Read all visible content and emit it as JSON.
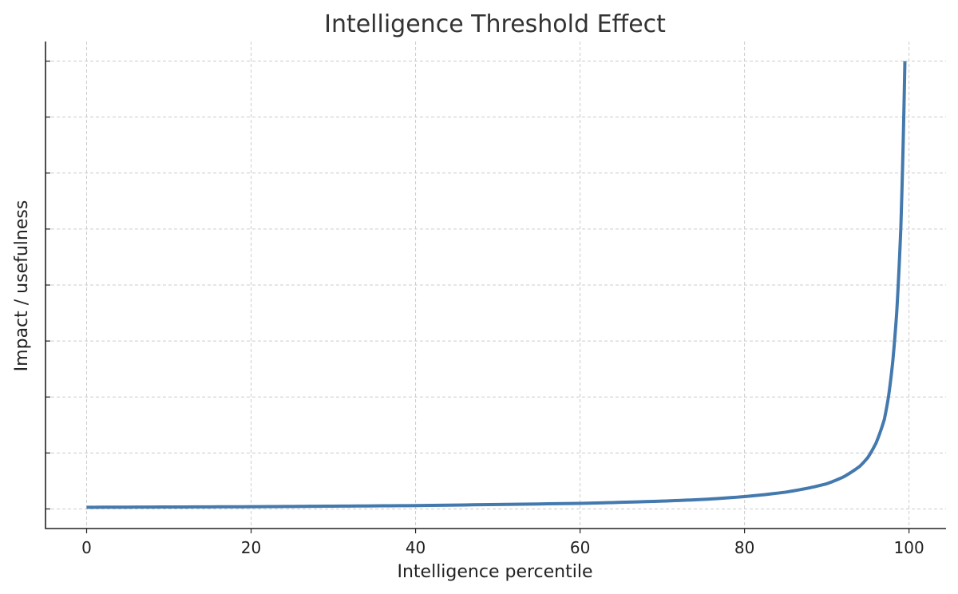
{
  "chart_data": {
    "type": "line",
    "title": "Intelligence Threshold Effect",
    "xlabel": "Intelligence percentile",
    "ylabel": "Impact / usefulness",
    "xlim": [
      -5,
      104.5
    ],
    "ylim": [
      -0.35,
      8.35
    ],
    "xticks": [
      0,
      20,
      40,
      60,
      80,
      100
    ],
    "yticks": [
      0,
      1,
      2,
      3,
      4,
      5,
      6,
      7,
      8
    ],
    "ytick_labels_shown": false,
    "grid": true,
    "series": [
      {
        "color": "#4479ae",
        "x": [
          0,
          10,
          20,
          30,
          40,
          50,
          60,
          70,
          75,
          80,
          85,
          88,
          90,
          92,
          94,
          95,
          96,
          97,
          97.5,
          98,
          98.5,
          99,
          99.3,
          99.5
        ],
        "y": [
          0.03,
          0.035,
          0.04,
          0.05,
          0.06,
          0.08,
          0.1,
          0.14,
          0.17,
          0.22,
          0.3,
          0.38,
          0.45,
          0.57,
          0.76,
          0.92,
          1.18,
          1.6,
          2.0,
          2.6,
          3.5,
          5.0,
          6.6,
          8.0
        ]
      }
    ]
  }
}
